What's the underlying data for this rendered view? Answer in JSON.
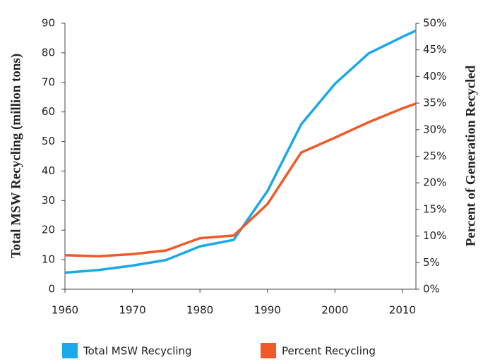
{
  "chart_data": {
    "type": "line",
    "x": [
      1960,
      1965,
      1970,
      1975,
      1980,
      1985,
      1990,
      1995,
      2000,
      2005,
      2010,
      2012
    ],
    "series": [
      {
        "name": "Total MSW Recycling",
        "color": "#1aa8e8",
        "values": [
          5.6,
          6.5,
          8.0,
          9.9,
          14.5,
          16.7,
          33.2,
          55.8,
          69.5,
          79.8,
          85.4,
          87.5
        ]
      },
      {
        "name": "Percent Recycling",
        "color": "#f05a28",
        "axis": "y2",
        "values": [
          6.4,
          6.2,
          6.6,
          7.3,
          9.6,
          10.1,
          16.0,
          25.7,
          28.5,
          31.4,
          34.0,
          34.9
        ]
      }
    ],
    "ylabel": "Total MSW Recycling (million tons)",
    "y2label": "Percent of Generation Recycled",
    "xlim": [
      1960,
      2012
    ],
    "xticks": [
      1960,
      1970,
      1980,
      1990,
      2000,
      2010
    ],
    "ylim": [
      0,
      90
    ],
    "yticks": [
      0,
      10,
      20,
      30,
      40,
      50,
      60,
      70,
      80,
      90
    ],
    "y2lim": [
      0,
      50
    ],
    "y2ticks": [
      {
        "value": 0,
        "label": "0%"
      },
      {
        "value": 5,
        "label": "5%"
      },
      {
        "value": 10,
        "label": "10%"
      },
      {
        "value": 15,
        "label": "15%"
      },
      {
        "value": 20,
        "label": "20%"
      },
      {
        "value": 25,
        "label": "25%"
      },
      {
        "value": 30,
        "label": "30%"
      },
      {
        "value": 35,
        "label": "35%"
      },
      {
        "value": 40,
        "label": "40%"
      },
      {
        "value": 45,
        "label": "45%"
      },
      {
        "value": 50,
        "label": "50%"
      }
    ],
    "legend": "bottom",
    "grid": false
  }
}
